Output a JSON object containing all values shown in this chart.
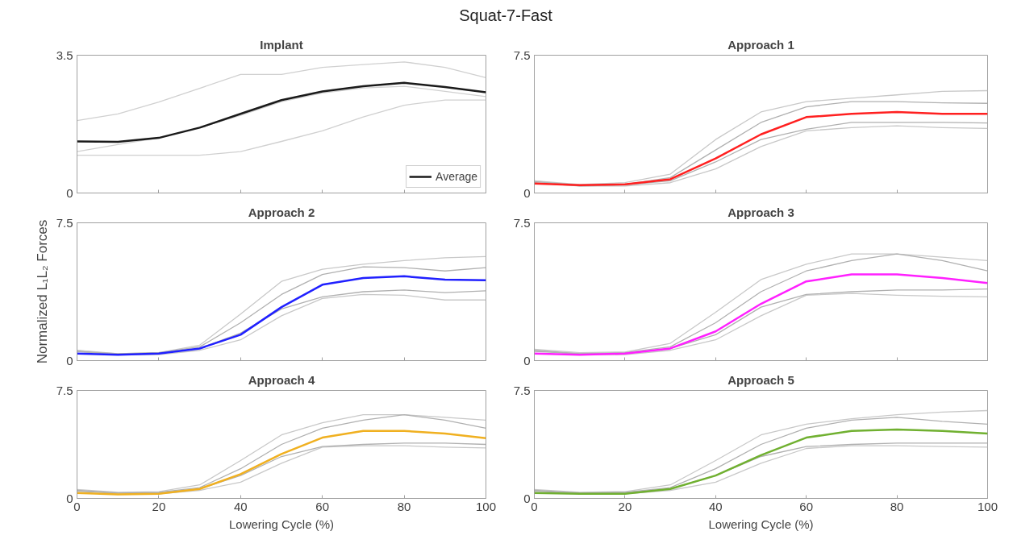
{
  "chart_data": [
    {
      "type": "line",
      "title": "Implant",
      "annotations": [
        "Squat-7-Fast"
      ],
      "x": [
        0,
        10,
        20,
        30,
        40,
        50,
        60,
        70,
        80,
        90,
        100
      ],
      "xlim": [
        0,
        100
      ],
      "xticks": [
        0,
        20,
        40,
        60,
        80,
        100
      ],
      "ylim": [
        0,
        3.5
      ],
      "yticks": [
        0,
        3.5
      ],
      "tick_labels": "y",
      "legend": "bottom right",
      "series": [
        {
          "color": "#d0d0d0",
          "values": [
            1.84,
            2.01,
            2.31,
            2.66,
            3.01,
            3.01,
            3.19,
            3.26,
            3.33,
            3.19,
            2.93
          ]
        },
        {
          "color": "#d0d0d0",
          "values": [
            0.96,
            0.96,
            0.96,
            0.96,
            1.05,
            1.31,
            1.58,
            1.93,
            2.23,
            2.36,
            2.36
          ]
        },
        {
          "color": "#d0d0d0",
          "values": [
            1.05,
            1.23,
            1.4,
            1.66,
            1.97,
            2.32,
            2.54,
            2.67,
            2.71,
            2.58,
            2.45
          ]
        },
        {
          "name": "Average",
          "color": "#1a1a1a",
          "values": [
            1.31,
            1.3,
            1.4,
            1.66,
            2.01,
            2.36,
            2.58,
            2.71,
            2.8,
            2.69,
            2.56
          ]
        }
      ]
    },
    {
      "type": "line",
      "title": "Approach 1",
      "x": [
        0,
        10,
        20,
        30,
        40,
        50,
        60,
        70,
        80,
        90,
        100
      ],
      "xlim": [
        0,
        100
      ],
      "xticks": [
        0,
        20,
        40,
        60,
        80,
        100
      ],
      "ylim": [
        0,
        7.5
      ],
      "yticks": [
        0,
        7.5
      ],
      "tick_labels": "y",
      "series": [
        {
          "color": "#c8c8c8",
          "values": [
            0.66,
            0.47,
            0.56,
            1.03,
            2.91,
            4.41,
            4.97,
            5.16,
            5.34,
            5.53,
            5.57
          ]
        },
        {
          "color": "#c8c8c8",
          "values": [
            0.66,
            0.38,
            0.38,
            0.56,
            1.31,
            2.53,
            3.38,
            3.56,
            3.66,
            3.56,
            3.51
          ]
        },
        {
          "color": "#b0b0b0",
          "values": [
            0.62,
            0.43,
            0.47,
            0.84,
            2.34,
            3.84,
            4.69,
            4.97,
            4.97,
            4.91,
            4.88
          ]
        },
        {
          "color": "#b0b0b0",
          "values": [
            0.56,
            0.38,
            0.43,
            0.66,
            1.69,
            2.91,
            3.47,
            3.84,
            3.84,
            3.84,
            3.81
          ]
        },
        {
          "color": "#ff2020",
          "values": [
            0.51,
            0.43,
            0.47,
            0.75,
            1.88,
            3.19,
            4.13,
            4.31,
            4.41,
            4.31,
            4.31
          ]
        }
      ]
    },
    {
      "type": "line",
      "title": "Approach 2",
      "ylabel": "Normalized L₁L₂ Forces",
      "x": [
        0,
        10,
        20,
        30,
        40,
        50,
        60,
        70,
        80,
        90,
        100
      ],
      "xlim": [
        0,
        100
      ],
      "xticks": [
        0,
        20,
        40,
        60,
        80,
        100
      ],
      "ylim": [
        0,
        7.5
      ],
      "yticks": [
        0,
        7.5
      ],
      "tick_labels": "y",
      "series": [
        {
          "color": "#c8c8c8",
          "values": [
            0.56,
            0.38,
            0.43,
            0.84,
            2.53,
            4.31,
            4.97,
            5.25,
            5.44,
            5.6,
            5.66
          ]
        },
        {
          "color": "#c8c8c8",
          "values": [
            0.56,
            0.32,
            0.32,
            0.56,
            1.13,
            2.44,
            3.38,
            3.6,
            3.56,
            3.3,
            3.3
          ]
        },
        {
          "color": "#b0b0b0",
          "values": [
            0.5,
            0.38,
            0.43,
            0.75,
            2.06,
            3.6,
            4.69,
            5.1,
            5.06,
            4.88,
            5.06
          ]
        },
        {
          "color": "#b0b0b0",
          "values": [
            0.5,
            0.32,
            0.38,
            0.66,
            1.5,
            2.81,
            3.47,
            3.75,
            3.84,
            3.7,
            3.8
          ]
        },
        {
          "color": "#2020ff",
          "values": [
            0.38,
            0.32,
            0.38,
            0.66,
            1.41,
            2.91,
            4.13,
            4.5,
            4.59,
            4.41,
            4.37
          ]
        }
      ]
    },
    {
      "type": "line",
      "title": "Approach 3",
      "x": [
        0,
        10,
        20,
        30,
        40,
        50,
        60,
        70,
        80,
        90,
        100
      ],
      "xlim": [
        0,
        100
      ],
      "xticks": [
        0,
        20,
        40,
        60,
        80,
        100
      ],
      "ylim": [
        0,
        7.5
      ],
      "yticks": [
        0,
        7.5
      ],
      "tick_labels": "y",
      "series": [
        {
          "color": "#c8c8c8",
          "values": [
            0.62,
            0.43,
            0.47,
            0.94,
            2.63,
            4.41,
            5.25,
            5.81,
            5.81,
            5.63,
            5.44
          ]
        },
        {
          "color": "#c8c8c8",
          "values": [
            0.56,
            0.32,
            0.32,
            0.56,
            1.13,
            2.44,
            3.56,
            3.66,
            3.56,
            3.5,
            3.47
          ]
        },
        {
          "color": "#b0b0b0",
          "values": [
            0.56,
            0.38,
            0.43,
            0.75,
            2.06,
            3.75,
            4.88,
            5.44,
            5.81,
            5.44,
            4.88
          ]
        },
        {
          "color": "#b0b0b0",
          "values": [
            0.5,
            0.38,
            0.38,
            0.66,
            1.41,
            2.91,
            3.6,
            3.75,
            3.84,
            3.84,
            3.9
          ]
        },
        {
          "color": "#ff20ff",
          "values": [
            0.38,
            0.32,
            0.38,
            0.66,
            1.59,
            3.09,
            4.31,
            4.69,
            4.69,
            4.5,
            4.22
          ]
        }
      ]
    },
    {
      "type": "line",
      "title": "Approach 4",
      "xlabel": "Lowering Cycle (%)",
      "x": [
        0,
        10,
        20,
        30,
        40,
        50,
        60,
        70,
        80,
        90,
        100
      ],
      "xlim": [
        0,
        100
      ],
      "xticks": [
        0,
        20,
        40,
        60,
        80,
        100
      ],
      "ylim": [
        0,
        7.5
      ],
      "yticks": [
        0,
        7.5
      ],
      "series": [
        {
          "color": "#c8c8c8",
          "values": [
            0.62,
            0.43,
            0.47,
            0.94,
            2.63,
            4.41,
            5.25,
            5.81,
            5.81,
            5.63,
            5.44
          ]
        },
        {
          "color": "#c8c8c8",
          "values": [
            0.56,
            0.32,
            0.32,
            0.56,
            1.13,
            2.44,
            3.56,
            3.66,
            3.66,
            3.56,
            3.5
          ]
        },
        {
          "color": "#b0b0b0",
          "values": [
            0.56,
            0.38,
            0.43,
            0.75,
            2.06,
            3.75,
            4.88,
            5.44,
            5.81,
            5.44,
            4.88
          ]
        },
        {
          "color": "#b0b0b0",
          "values": [
            0.5,
            0.38,
            0.38,
            0.66,
            1.59,
            2.91,
            3.6,
            3.75,
            3.84,
            3.84,
            3.75
          ]
        },
        {
          "color": "#f0b020",
          "values": [
            0.38,
            0.28,
            0.32,
            0.66,
            1.69,
            3.09,
            4.22,
            4.69,
            4.69,
            4.5,
            4.18
          ]
        }
      ]
    },
    {
      "type": "line",
      "title": "Approach 5",
      "xlabel": "Lowering Cycle (%)",
      "x": [
        0,
        10,
        20,
        30,
        40,
        50,
        60,
        70,
        80,
        90,
        100
      ],
      "xlim": [
        0,
        100
      ],
      "xticks": [
        0,
        20,
        40,
        60,
        80,
        100
      ],
      "ylim": [
        0,
        7.5
      ],
      "yticks": [
        0,
        7.5
      ],
      "series": [
        {
          "color": "#c8c8c8",
          "values": [
            0.62,
            0.43,
            0.47,
            0.94,
            2.63,
            4.41,
            5.16,
            5.53,
            5.81,
            6.0,
            6.1
          ]
        },
        {
          "color": "#c8c8c8",
          "values": [
            0.56,
            0.32,
            0.32,
            0.56,
            1.13,
            2.44,
            3.47,
            3.66,
            3.66,
            3.6,
            3.56
          ]
        },
        {
          "color": "#b0b0b0",
          "values": [
            0.56,
            0.38,
            0.43,
            0.75,
            2.06,
            3.75,
            4.88,
            5.44,
            5.63,
            5.35,
            5.16
          ]
        },
        {
          "color": "#b0b0b0",
          "values": [
            0.5,
            0.38,
            0.38,
            0.66,
            1.59,
            2.91,
            3.6,
            3.75,
            3.84,
            3.84,
            3.84
          ]
        },
        {
          "color": "#70b030",
          "values": [
            0.38,
            0.32,
            0.32,
            0.66,
            1.59,
            3.0,
            4.22,
            4.69,
            4.78,
            4.69,
            4.5
          ]
        }
      ]
    }
  ]
}
